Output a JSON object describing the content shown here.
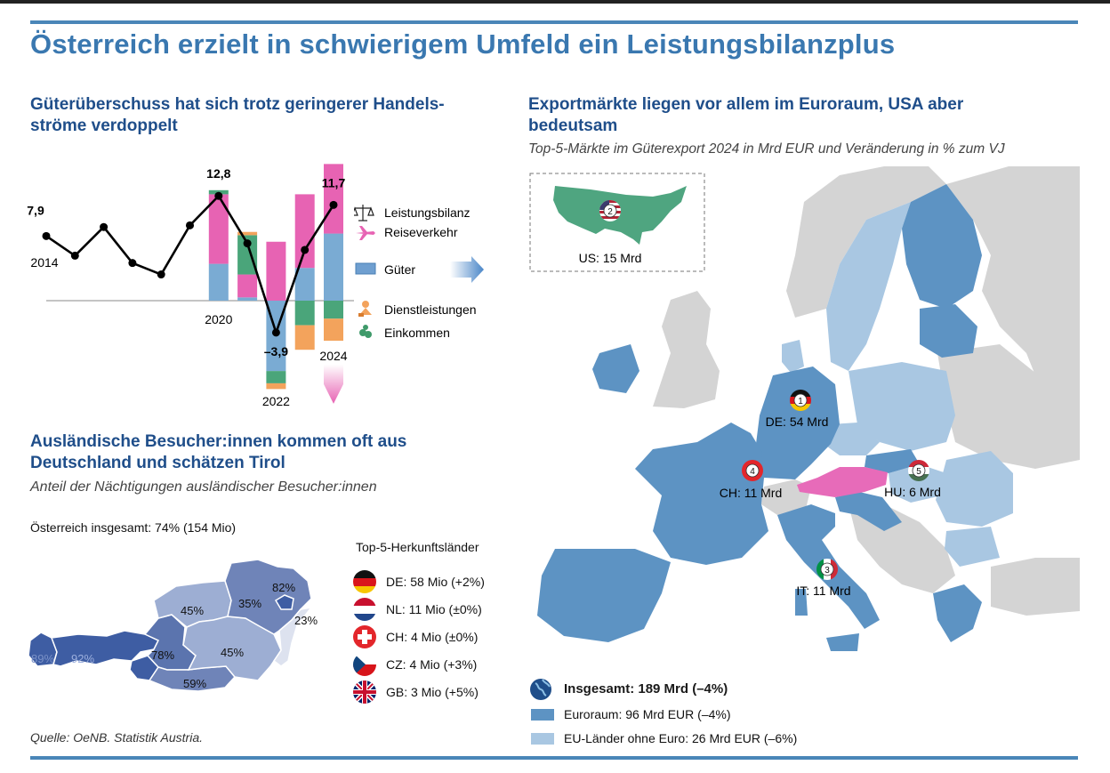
{
  "title": "Österreich erzielt in schwierigem Umfeld ein Leistungsbilanzplus",
  "left_top": {
    "heading": "Güterüberschuss hat sich trotz geringerer Handels-ströme verdoppelt",
    "heading_line1": "Güterüberschuss hat sich trotz geringerer Handels-",
    "heading_line2": "ströme verdoppelt"
  },
  "bottom_left": {
    "heading_line1": "Ausländische Besucher:innen kommen oft aus",
    "heading_line2": "Deutschland und schätzen Tirol",
    "subtitle": "Anteil der Nächtigungen ausländischer Besucher:innen",
    "total": "Österreich insgesamt: 74% (154 Mio)",
    "list_title": "Top-5-Herkunftsländer",
    "countries": [
      {
        "flag": "de-flag-icon",
        "label": "DE: 58 Mio (+2%)"
      },
      {
        "flag": "nl-flag-icon",
        "label": "NL: 11 Mio (±0%)"
      },
      {
        "flag": "ch-flag-icon",
        "label": "CH: 4 Mio (±0%)"
      },
      {
        "flag": "cz-flag-icon",
        "label": "CZ: 4 Mio (+3%)"
      },
      {
        "flag": "gb-flag-icon",
        "label": "GB: 3 Mio (+5%)"
      }
    ],
    "regions": [
      {
        "name": "Vorarlberg",
        "share": "89%"
      },
      {
        "name": "Tirol",
        "share": "92%"
      },
      {
        "name": "Salzburg",
        "share": "78%"
      },
      {
        "name": "Kärnten",
        "share": "59%"
      },
      {
        "name": "Oberösterreich",
        "share": "45%"
      },
      {
        "name": "Steiermark",
        "share": "45%"
      },
      {
        "name": "Niederösterreich",
        "share": "35%"
      },
      {
        "name": "Wien",
        "share": "82%"
      },
      {
        "name": "Burgenland",
        "share": "23%"
      }
    ]
  },
  "right": {
    "heading_line1": "Exportmärkte liegen vor allem im Euroraum, USA aber",
    "heading_line2": "bedeutsam",
    "subtitle": "Top-5-Märkte im Güterexport 2024 in Mrd EUR und Veränderung in % zum VJ",
    "markets": [
      {
        "rank": "1",
        "label": "DE: 54 Mrd"
      },
      {
        "rank": "2",
        "label": "US: 15 Mrd"
      },
      {
        "rank": "3",
        "label": "IT: 11 Mrd"
      },
      {
        "rank": "4",
        "label": "CH: 11 Mrd"
      },
      {
        "rank": "5",
        "label": "HU: 6 Mrd"
      }
    ],
    "legend": {
      "total": "Insgesamt: 189 Mrd (–4%)",
      "euro": "Euroraum: 96 Mrd EUR (–4%)",
      "eu_non_euro": "EU-Länder ohne Euro: 26 Mrd EUR (–6%)"
    },
    "colors": {
      "euro": "#5d93c3",
      "eu_non_euro": "#a9c7e2",
      "other": "#d4d4d4",
      "austria": "#e76bb9",
      "usa": "#4fa580"
    }
  },
  "source": "Quelle: OeNB. Statistik Austria.",
  "chart_data": {
    "type": "bar",
    "categories": [
      "2014",
      "2015",
      "2016",
      "2017",
      "2018",
      "2019",
      "2020",
      "2021",
      "2022",
      "2023",
      "2024"
    ],
    "x_tick_labels": {
      "2014": "2014",
      "2020": "2020",
      "2022": "2022",
      "2024": "2024"
    },
    "legend": [
      "Leistungsbilanz",
      "Reiseverkehr",
      "Güter",
      "Dienstleistungen",
      "Einkommen"
    ],
    "legend_icons": [
      "scale-icon",
      "airplane-icon",
      "goods-icon",
      "services-icon",
      "income-icon"
    ],
    "colors": {
      "Leistungsbilanz": "#000000",
      "Reiseverkehr": "#e763b3",
      "Güter": "#7aabd3",
      "Dienstleistungen": "#f3a35c",
      "Einkommen": "#4aa57a"
    },
    "point_labels": [
      {
        "category": "2014",
        "value": "7,9"
      },
      {
        "category": "2020",
        "value": "12,8"
      },
      {
        "category": "2022",
        "value": "–3,9"
      },
      {
        "category": "2024",
        "value": "11,7"
      }
    ],
    "line": {
      "name": "Leistungsbilanz",
      "values": [
        7.9,
        5.5,
        9.0,
        4.6,
        3.2,
        9.2,
        12.8,
        7.0,
        -3.9,
        6.2,
        11.7
      ]
    },
    "stacked_bars": [
      {
        "category": "2020",
        "Güter": 4.5,
        "Reiseverkehr": 8.5,
        "Einkommen": 0.5,
        "Dienstleistungen": 0
      },
      {
        "category": "2021",
        "Güter": 0.4,
        "Reiseverkehr": 2.8,
        "Einkommen": 4.8,
        "Dienstleistungen": 0.4
      },
      {
        "category": "2022",
        "Güter": -8.6,
        "Reiseverkehr": 7.2,
        "Einkommen": -1.5,
        "Dienstleistungen": -0.7
      },
      {
        "category": "2023",
        "Güter": 4.0,
        "Reiseverkehr": 9.0,
        "Einkommen": -3.0,
        "Dienstleistungen": -3.0
      },
      {
        "category": "2024",
        "Güter": 8.2,
        "Reiseverkehr": 8.5,
        "Einkommen": -2.2,
        "Dienstleistungen": -2.7
      }
    ],
    "ylim": [
      -11,
      17
    ]
  }
}
